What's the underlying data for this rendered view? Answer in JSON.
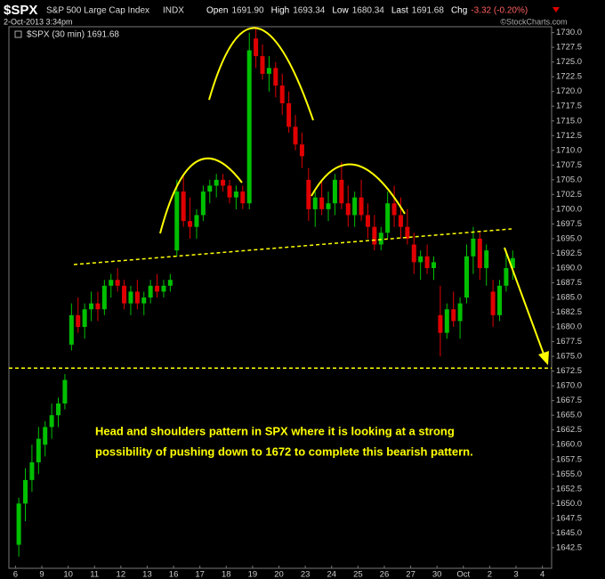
{
  "header": {
    "symbol": "$SPX",
    "name": "S&P 500 Large Cap Index",
    "exchange": "INDX",
    "date": "2-Oct-2013 3:34pm",
    "quote": [
      {
        "label": "Open",
        "value": "1691.90"
      },
      {
        "label": "High",
        "value": "1693.34"
      },
      {
        "label": "Low",
        "value": "1680.34"
      },
      {
        "label": "Last",
        "value": "1691.68"
      },
      {
        "label": "Chg",
        "value": "-3.32 (-0.20%)"
      }
    ],
    "credit": "©StockCharts.com"
  },
  "chart_data": {
    "type": "candlestick",
    "series_name": "$SPX (30 min) 1691.68",
    "up_color": "#00c000",
    "down_color": "#e00000",
    "annotation": [
      "Head and shoulders pattern in SPX where it is looking at a strong",
      "possibility of pushing down to 1672 to complete this bearish pattern."
    ],
    "target_line": 1673,
    "xlim": [
      -0.25,
      20.35
    ],
    "ylim": [
      1639,
      1731
    ],
    "xticks": [
      {
        "value": 0,
        "label": "6"
      },
      {
        "value": 1,
        "label": "9"
      },
      {
        "value": 2,
        "label": "10"
      },
      {
        "value": 3,
        "label": "11"
      },
      {
        "value": 4,
        "label": "12"
      },
      {
        "value": 5,
        "label": "13"
      },
      {
        "value": 6,
        "label": "16"
      },
      {
        "value": 7,
        "label": "17"
      },
      {
        "value": 8,
        "label": "18"
      },
      {
        "value": 9,
        "label": "19"
      },
      {
        "value": 10,
        "label": "20"
      },
      {
        "value": 11,
        "label": "23"
      },
      {
        "value": 12,
        "label": "24"
      },
      {
        "value": 13,
        "label": "25"
      },
      {
        "value": 14,
        "label": "26"
      },
      {
        "value": 15,
        "label": "27"
      },
      {
        "value": 16,
        "label": "30"
      },
      {
        "value": 17,
        "label": "Oct"
      },
      {
        "value": 18,
        "label": "2"
      },
      {
        "value": 19,
        "label": "3"
      },
      {
        "value": 20,
        "label": "4"
      }
    ],
    "yticks": [
      1642.5,
      {
        "value": 1645,
        "label": "1645.0"
      },
      1647.5,
      {
        "value": 1650,
        "label": "1650.0"
      },
      1652.5,
      {
        "value": 1655,
        "label": "1655.0"
      },
      1657.5,
      {
        "value": 1660,
        "label": "1660.0"
      },
      1662.5,
      {
        "value": 1665,
        "label": "1665.0"
      },
      1667.5,
      {
        "value": 1670,
        "label": "1670.0"
      },
      1672.5,
      {
        "value": 1675,
        "label": "1675.0"
      },
      1677.5,
      {
        "value": 1680,
        "label": "1680.0"
      },
      1682.5,
      {
        "value": 1685,
        "label": "1685.0"
      },
      1687.5,
      {
        "value": 1690,
        "label": "1690.0"
      },
      1692.5,
      {
        "value": 1695,
        "label": "1695.0"
      },
      1697.5,
      {
        "value": 1700,
        "label": "1700.0"
      },
      1702.5,
      {
        "value": 1705,
        "label": "1705.0"
      },
      1707.5,
      {
        "value": 1710,
        "label": "1710.0"
      },
      1712.5,
      {
        "value": 1715,
        "label": "1715.0"
      },
      1717.5,
      {
        "value": 1720,
        "label": "1720.0"
      },
      1722.5,
      {
        "value": 1725,
        "label": "1725.0"
      },
      1727.5,
      {
        "value": 1730,
        "label": "1730.0"
      }
    ],
    "x": [
      0.125,
      0.375,
      0.625,
      0.875,
      1.125,
      1.375,
      1.625,
      1.875,
      2.125,
      2.375,
      2.625,
      2.875,
      3.125,
      3.375,
      3.625,
      3.875,
      4.125,
      4.375,
      4.625,
      4.875,
      5.125,
      5.375,
      5.625,
      5.875,
      6.125,
      6.375,
      6.625,
      6.875,
      7.125,
      7.375,
      7.625,
      7.875,
      8.125,
      8.375,
      8.625,
      8.875,
      9.125,
      9.375,
      9.625,
      9.875,
      10.125,
      10.375,
      10.625,
      10.875,
      11.125,
      11.375,
      11.625,
      11.875,
      12.125,
      12.375,
      12.625,
      12.875,
      13.125,
      13.375,
      13.625,
      13.875,
      14.125,
      14.375,
      14.625,
      14.875,
      15.125,
      15.375,
      15.625,
      15.875,
      16.125,
      16.375,
      16.625,
      16.875,
      17.125,
      17.375,
      17.625,
      17.875,
      18.125,
      18.375,
      18.625,
      18.875
    ],
    "open": [
      1643,
      1650,
      1654,
      1657,
      1660,
      1663,
      1665,
      1667,
      1677,
      1682,
      1680,
      1683,
      1684,
      1683,
      1687,
      1688,
      1687,
      1684,
      1686,
      1684,
      1685,
      1687,
      1686,
      1687,
      1693,
      1703,
      1698,
      1697,
      1699,
      1703,
      1704,
      1705,
      1704,
      1702,
      1703,
      1701,
      1729,
      1726,
      1723,
      1724,
      1721,
      1718,
      1714,
      1711,
      1705,
      1700,
      1702,
      1700,
      1701,
      1705,
      1701,
      1699,
      1702,
      1699,
      1697,
      1694,
      1696,
      1701,
      1699,
      1697,
      1694,
      1691,
      1692,
      1690,
      1682,
      1679,
      1683,
      1681,
      1685,
      1692,
      1695,
      1690,
      1686,
      1682,
      1687,
      1690
    ],
    "high": [
      1651,
      1656,
      1660,
      1663,
      1664,
      1667,
      1668,
      1672,
      1684,
      1685,
      1684,
      1686,
      1686,
      1688,
      1689,
      1690,
      1688,
      1687,
      1688,
      1686,
      1688,
      1689,
      1688,
      1689,
      1705,
      1706,
      1702,
      1700,
      1704,
      1705,
      1706,
      1706,
      1705,
      1704,
      1704,
      1730,
      1731,
      1728,
      1726,
      1725,
      1723,
      1720,
      1716,
      1713,
      1707,
      1703,
      1705,
      1703,
      1706,
      1708,
      1704,
      1703,
      1705,
      1701,
      1699,
      1697,
      1703,
      1704,
      1702,
      1700,
      1696,
      1693,
      1694,
      1692,
      1687,
      1684,
      1686,
      1685,
      1694,
      1697,
      1696,
      1694,
      1688,
      1688,
      1693,
      1693
    ],
    "low": [
      1641,
      1647,
      1652,
      1655,
      1658,
      1661,
      1663,
      1666,
      1676,
      1679,
      1678,
      1681,
      1681,
      1682,
      1685,
      1686,
      1683,
      1682,
      1683,
      1682,
      1684,
      1685,
      1685,
      1686,
      1692,
      1697,
      1695,
      1695,
      1698,
      1701,
      1702,
      1703,
      1701,
      1700,
      1700,
      1700,
      1724,
      1722,
      1720,
      1719,
      1716,
      1713,
      1710,
      1707,
      1698,
      1697,
      1699,
      1698,
      1699,
      1700,
      1697,
      1697,
      1698,
      1695,
      1693,
      1693,
      1695,
      1697,
      1695,
      1694,
      1689,
      1688,
      1689,
      1688,
      1675,
      1678,
      1680,
      1678,
      1684,
      1689,
      1688,
      1687,
      1680,
      1681,
      1686,
      1688
    ],
    "close": [
      1650,
      1654,
      1657,
      1661,
      1663,
      1665,
      1667,
      1671,
      1682,
      1680,
      1683,
      1684,
      1683,
      1687,
      1688,
      1687,
      1684,
      1686,
      1684,
      1685,
      1687,
      1686,
      1687,
      1688,
      1703,
      1698,
      1697,
      1699,
      1703,
      1704,
      1705,
      1704,
      1702,
      1703,
      1701,
      1727,
      1726,
      1723,
      1724,
      1721,
      1718,
      1714,
      1711,
      1709,
      1700,
      1702,
      1700,
      1701,
      1705,
      1701,
      1699,
      1702,
      1699,
      1697,
      1694,
      1696,
      1701,
      1699,
      1697,
      1695,
      1691,
      1692,
      1690,
      1691,
      1679,
      1683,
      1681,
      1684,
      1692,
      1695,
      1690,
      1693,
      1682,
      1687,
      1690,
      1691.68
    ]
  }
}
